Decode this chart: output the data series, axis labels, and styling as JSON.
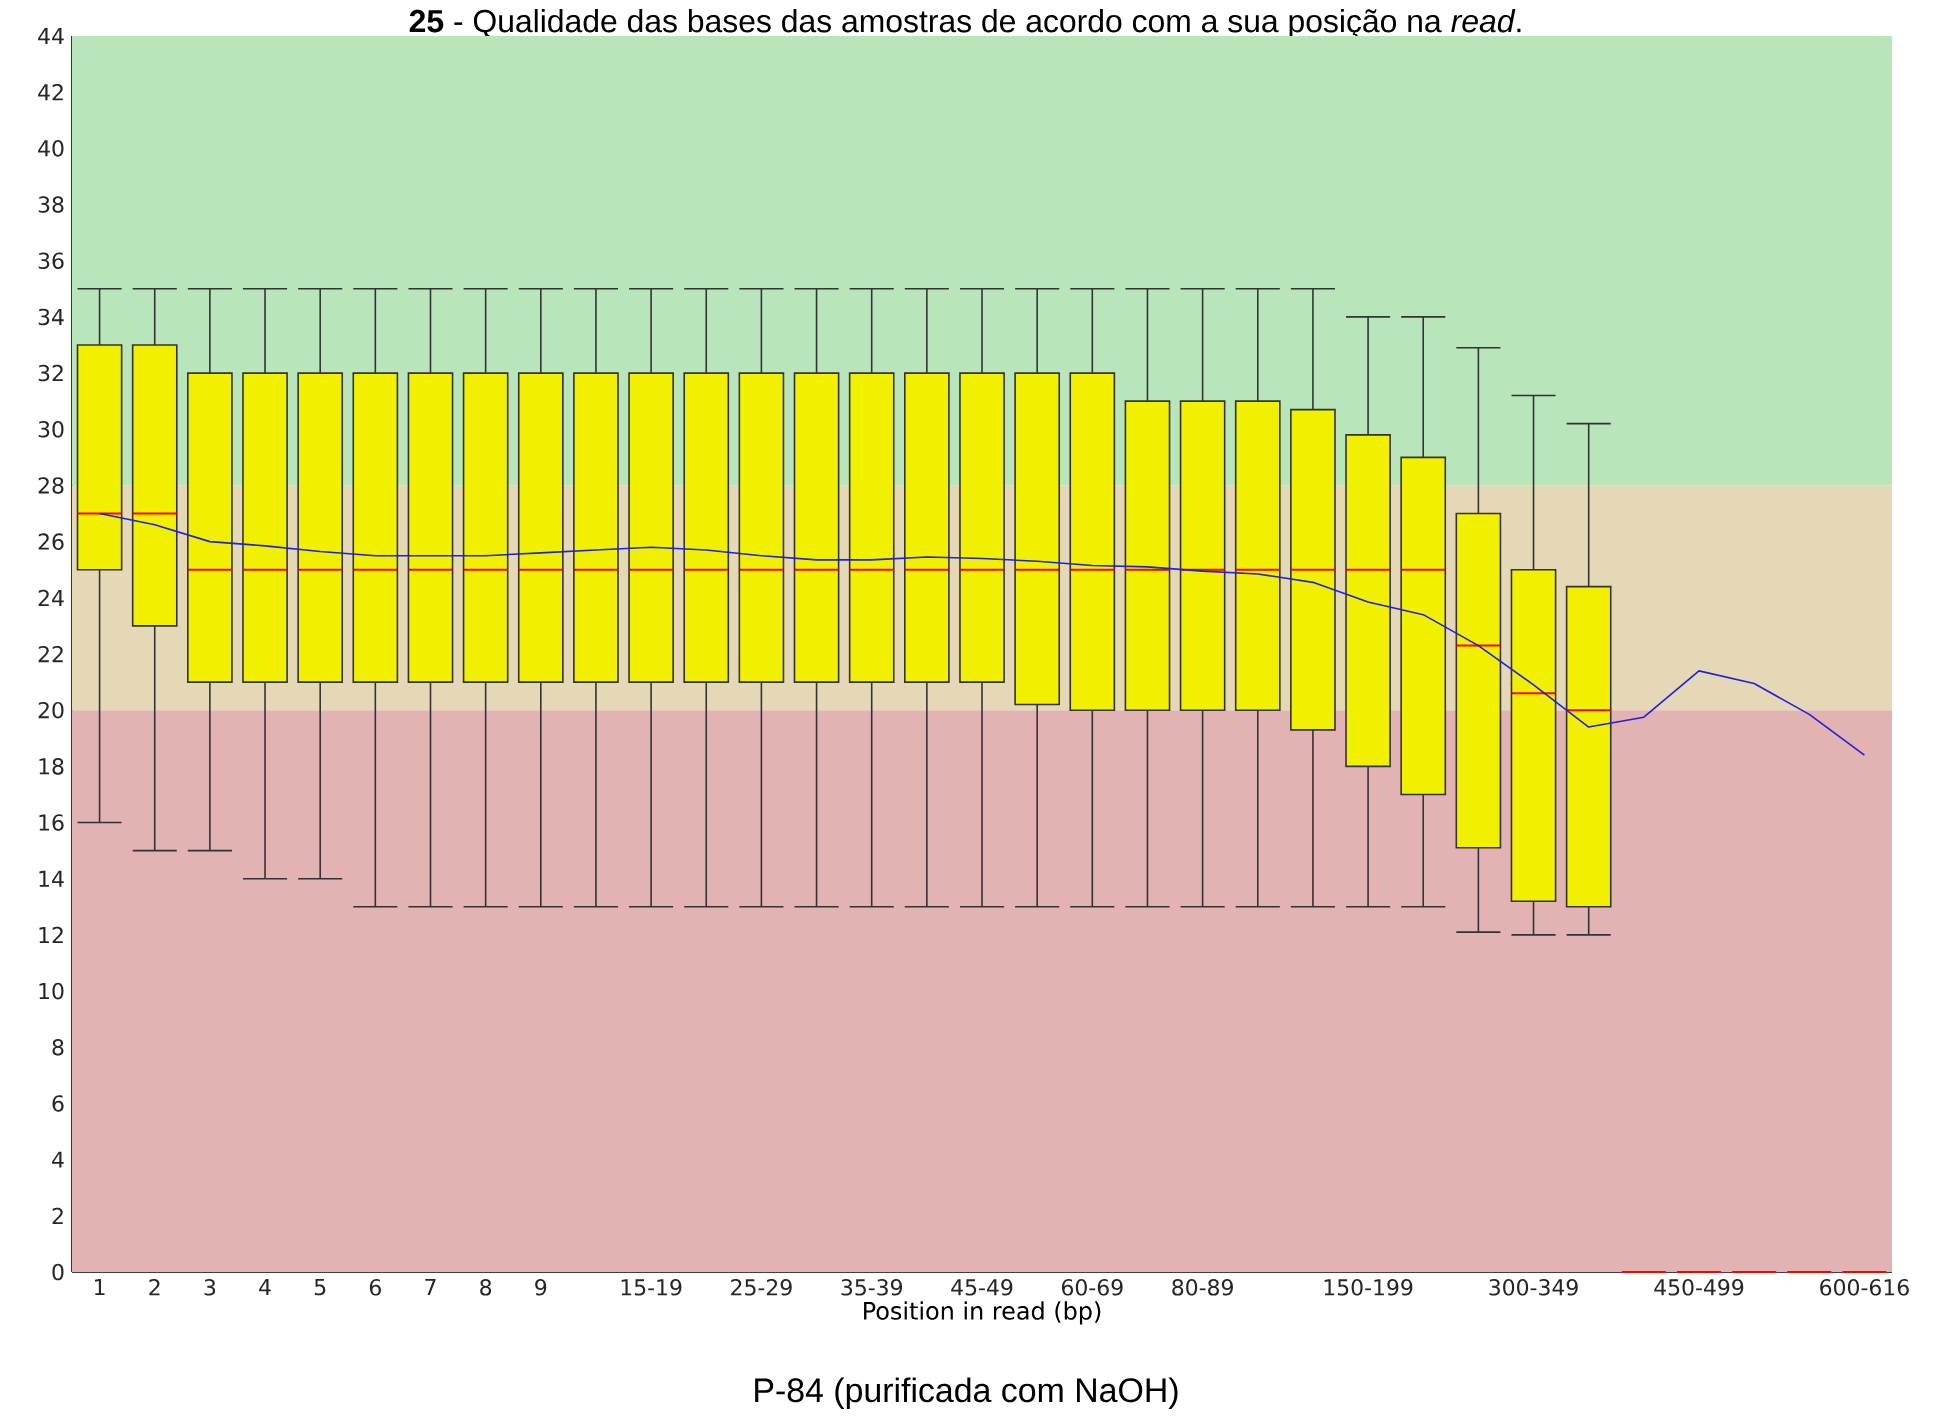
{
  "chart_data": {
    "type": "box",
    "title": "**25** - Qualidade das bases das amostras de acordo com a sua posição na *read*.",
    "xlabel": "Position in read (bp)",
    "annotations": [
      "P-84 (purificada com NaOH)"
    ],
    "categories": [
      "1",
      "2",
      "3",
      "4",
      "5",
      "6",
      "7",
      "8",
      "9",
      null,
      "15-19",
      null,
      "25-29",
      null,
      "35-39",
      null,
      "45-49",
      null,
      "60-69",
      null,
      "80-89",
      null,
      null,
      "150-199",
      null,
      null,
      "300-349",
      null,
      null,
      "450-499",
      null,
      null,
      "600-616"
    ],
    "ylim": [
      0,
      44
    ],
    "yticks": [
      0,
      2,
      4,
      6,
      8,
      10,
      12,
      14,
      16,
      18,
      20,
      22,
      24,
      26,
      28,
      30,
      32,
      34,
      36,
      38,
      40,
      42,
      44
    ],
    "bands": [
      {
        "axis": "y",
        "from": 0,
        "to": 20,
        "color": "#e3b2b3"
      },
      {
        "axis": "y",
        "from": 20,
        "to": 28,
        "color": "#e4d8b6"
      },
      {
        "axis": "y",
        "from": 28,
        "to": 44,
        "color": "#b9e5bb"
      }
    ],
    "series": [
      {
        "type": "box",
        "color": "#f0f000",
        "boxes": [
          {
            "low": 16,
            "q1": 25,
            "median": 27,
            "q3": 33,
            "high": 35
          },
          {
            "low": 15,
            "q1": 23,
            "median": 27,
            "q3": 33,
            "high": 35
          },
          {
            "low": 15,
            "q1": 21,
            "median": 25,
            "q3": 32,
            "high": 35
          },
          {
            "low": 14,
            "q1": 21,
            "median": 25,
            "q3": 32,
            "high": 35
          },
          {
            "low": 14,
            "q1": 21,
            "median": 25,
            "q3": 32,
            "high": 35
          },
          {
            "low": 13,
            "q1": 21,
            "median": 25,
            "q3": 32,
            "high": 35
          },
          {
            "low": 13,
            "q1": 21,
            "median": 25,
            "q3": 32,
            "high": 35
          },
          {
            "low": 13,
            "q1": 21,
            "median": 25,
            "q3": 32,
            "high": 35
          },
          {
            "low": 13,
            "q1": 21,
            "median": 25,
            "q3": 32,
            "high": 35
          },
          {
            "low": 13,
            "q1": 21,
            "median": 25,
            "q3": 32,
            "high": 35
          },
          {
            "low": 13,
            "q1": 21,
            "median": 25,
            "q3": 32,
            "high": 35
          },
          {
            "low": 13,
            "q1": 21,
            "median": 25,
            "q3": 32,
            "high": 35
          },
          {
            "low": 13,
            "q1": 21,
            "median": 25,
            "q3": 32,
            "high": 35
          },
          {
            "low": 13,
            "q1": 21,
            "median": 25,
            "q3": 32,
            "high": 35
          },
          {
            "low": 13,
            "q1": 21,
            "median": 25,
            "q3": 32,
            "high": 35
          },
          {
            "low": 13,
            "q1": 21,
            "median": 25,
            "q3": 32,
            "high": 35
          },
          {
            "low": 13,
            "q1": 21,
            "median": 25,
            "q3": 32,
            "high": 35
          },
          {
            "low": 13,
            "q1": 20.2,
            "median": 25,
            "q3": 32,
            "high": 35
          },
          {
            "low": 13,
            "q1": 20,
            "median": 25,
            "q3": 32,
            "high": 35
          },
          {
            "low": 13,
            "q1": 20,
            "median": 25,
            "q3": 31,
            "high": 35
          },
          {
            "low": 13,
            "q1": 20,
            "median": 25,
            "q3": 31,
            "high": 35
          },
          {
            "low": 13,
            "q1": 20,
            "median": 25,
            "q3": 31,
            "high": 35
          },
          {
            "low": 13,
            "q1": 19.3,
            "median": 25,
            "q3": 30.7,
            "high": 35
          },
          {
            "low": 13,
            "q1": 18,
            "median": 25,
            "q3": 29.8,
            "high": 34
          },
          {
            "low": 13,
            "q1": 17,
            "median": 25,
            "q3": 29,
            "high": 34
          },
          {
            "low": 12.1,
            "q1": 15.1,
            "median": 22.3,
            "q3": 27,
            "high": 32.9
          },
          {
            "low": 12,
            "q1": 13.2,
            "median": 20.6,
            "q3": 25,
            "high": 31.2
          },
          {
            "low": 12,
            "q1": 13,
            "median": 20,
            "q3": 24.4,
            "high": 30.2
          },
          {
            "low": 0,
            "q1": 0,
            "median": 0,
            "q3": 0,
            "high": 0
          },
          {
            "low": 0,
            "q1": 0,
            "median": 0,
            "q3": 0,
            "high": 0
          },
          {
            "low": 0,
            "q1": 0,
            "median": 0,
            "q3": 0,
            "high": 0
          },
          {
            "low": 0,
            "q1": 0,
            "median": 0,
            "q3": 0,
            "high": 0
          },
          {
            "low": 0,
            "q1": 0,
            "median": 0,
            "q3": 0,
            "high": 0
          }
        ]
      },
      {
        "type": "line",
        "color": "#2020e0",
        "values": [
          27.0,
          26.6,
          26.0,
          25.85,
          25.65,
          25.5,
          25.5,
          25.5,
          25.6,
          25.7,
          25.8,
          25.7,
          25.5,
          25.35,
          25.35,
          25.45,
          25.4,
          25.3,
          25.15,
          25.1,
          24.95,
          24.85,
          24.55,
          23.85,
          23.4,
          22.3,
          20.9,
          19.4,
          19.75,
          21.4,
          20.95,
          19.85,
          18.4
        ]
      }
    ]
  }
}
